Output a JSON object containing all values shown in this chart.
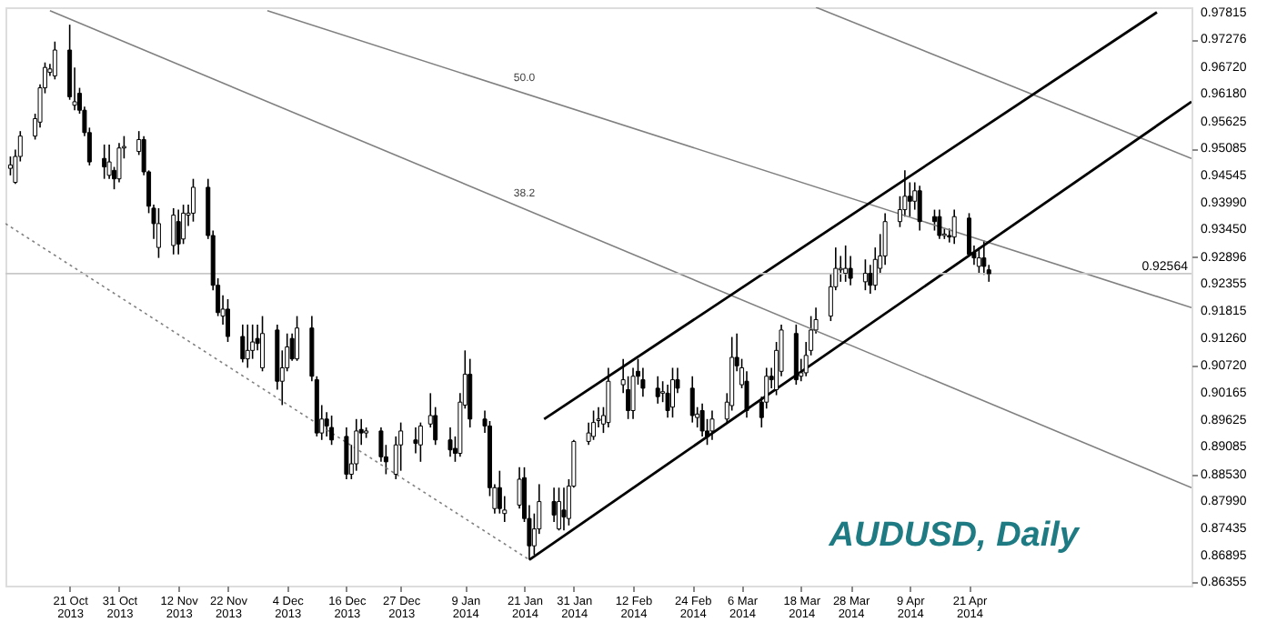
{
  "chart_data": {
    "type": "candlestick",
    "title": "AUDUSD, Daily",
    "x": [
      "2013-10-09",
      "2013-10-10",
      "2013-10-11",
      "2013-10-14",
      "2013-10-15",
      "2013-10-16",
      "2013-10-17",
      "2013-10-18",
      "2013-10-21",
      "2013-10-22",
      "2013-10-23",
      "2013-10-24",
      "2013-10-25",
      "2013-10-28",
      "2013-10-29",
      "2013-10-30",
      "2013-10-31",
      "2013-11-01",
      "2013-11-04",
      "2013-11-05",
      "2013-11-06",
      "2013-11-07",
      "2013-11-08",
      "2013-11-11",
      "2013-11-12",
      "2013-11-13",
      "2013-11-14",
      "2013-11-15",
      "2013-11-18",
      "2013-11-19",
      "2013-11-20",
      "2013-11-21",
      "2013-11-22",
      "2013-11-25",
      "2013-11-26",
      "2013-11-27",
      "2013-11-28",
      "2013-11-29",
      "2013-12-02",
      "2013-12-03",
      "2013-12-04",
      "2013-12-05",
      "2013-12-06",
      "2013-12-09",
      "2013-12-10",
      "2013-12-11",
      "2013-12-12",
      "2013-12-13",
      "2013-12-16",
      "2013-12-17",
      "2013-12-18",
      "2013-12-19",
      "2013-12-20",
      "2013-12-23",
      "2013-12-24",
      "2013-12-26",
      "2013-12-27",
      "2013-12-30",
      "2013-12-31",
      "2014-01-02",
      "2014-01-03",
      "2014-01-06",
      "2014-01-07",
      "2014-01-08",
      "2014-01-09",
      "2014-01-10",
      "2014-01-13",
      "2014-01-14",
      "2014-01-15",
      "2014-01-16",
      "2014-01-17",
      "2014-01-20",
      "2014-01-21",
      "2014-01-22",
      "2014-01-23",
      "2014-01-24",
      "2014-01-27",
      "2014-01-28",
      "2014-01-29",
      "2014-01-30",
      "2014-01-31",
      "2014-02-03",
      "2014-02-04",
      "2014-02-05",
      "2014-02-06",
      "2014-02-07",
      "2014-02-10",
      "2014-02-11",
      "2014-02-12",
      "2014-02-13",
      "2014-02-14",
      "2014-02-17",
      "2014-02-18",
      "2014-02-19",
      "2014-02-20",
      "2014-02-21",
      "2014-02-24",
      "2014-02-25",
      "2014-02-26",
      "2014-02-27",
      "2014-02-28",
      "2014-03-03",
      "2014-03-04",
      "2014-03-05",
      "2014-03-06",
      "2014-03-07",
      "2014-03-10",
      "2014-03-11",
      "2014-03-12",
      "2014-03-13",
      "2014-03-14",
      "2014-03-17",
      "2014-03-18",
      "2014-03-19",
      "2014-03-20",
      "2014-03-21",
      "2014-03-24",
      "2014-03-25",
      "2014-03-26",
      "2014-03-27",
      "2014-03-28",
      "2014-03-31",
      "2014-04-01",
      "2014-04-02",
      "2014-04-03",
      "2014-04-04",
      "2014-04-07",
      "2014-04-08",
      "2014-04-09",
      "2014-04-10",
      "2014-04-11",
      "2014-04-14",
      "2014-04-15",
      "2014-04-16",
      "2014-04-17",
      "2014-04-18",
      "2014-04-21",
      "2014-04-22",
      "2014-04-23",
      "2014-04-24",
      "2014-04-25"
    ],
    "ohlc": [
      [
        0.9468,
        0.9492,
        0.9454,
        0.9475
      ],
      [
        0.944,
        0.9506,
        0.9437,
        0.9492
      ],
      [
        0.9492,
        0.9543,
        0.9482,
        0.9533
      ],
      [
        0.9533,
        0.9578,
        0.9526,
        0.9568
      ],
      [
        0.9561,
        0.9637,
        0.955,
        0.963
      ],
      [
        0.963,
        0.9681,
        0.9619,
        0.9671
      ],
      [
        0.9661,
        0.9678,
        0.9654,
        0.9668
      ],
      [
        0.9654,
        0.9723,
        0.9647,
        0.9706
      ],
      [
        0.9706,
        0.9757,
        0.9606,
        0.9612
      ],
      [
        0.9595,
        0.9671,
        0.9585,
        0.9602
      ],
      [
        0.9619,
        0.963,
        0.9578,
        0.9585
      ],
      [
        0.9585,
        0.9592,
        0.9533,
        0.954
      ],
      [
        0.954,
        0.955,
        0.9474,
        0.9481
      ],
      [
        0.9488,
        0.9516,
        0.9447,
        0.9471
      ],
      [
        0.9454,
        0.9516,
        0.9447,
        0.9481
      ],
      [
        0.9464,
        0.9471,
        0.9426,
        0.9447
      ],
      [
        0.9447,
        0.9519,
        0.944,
        0.9509
      ],
      [
        0.9509,
        0.9533,
        0.9488,
        0.9512
      ],
      [
        0.9502,
        0.9543,
        0.9495,
        0.9526
      ],
      [
        0.9526,
        0.9533,
        0.9454,
        0.9461
      ],
      [
        0.9461,
        0.9464,
        0.9378,
        0.9392
      ],
      [
        0.9388,
        0.9395,
        0.9326,
        0.9357
      ],
      [
        0.9309,
        0.9388,
        0.9288,
        0.9357
      ],
      [
        0.9313,
        0.9388,
        0.9295,
        0.9374
      ],
      [
        0.9361,
        0.9385,
        0.9295,
        0.9316
      ],
      [
        0.9326,
        0.9395,
        0.9316,
        0.9378
      ],
      [
        0.9374,
        0.9395,
        0.9352,
        0.9378
      ],
      [
        0.9378,
        0.9447,
        0.9361,
        0.943
      ],
      [
        0.943,
        0.9447,
        0.9326,
        0.9333
      ],
      [
        0.9333,
        0.9343,
        0.9223,
        0.9233
      ],
      [
        0.9233,
        0.9247,
        0.9171,
        0.9178
      ],
      [
        0.9171,
        0.9213,
        0.9154,
        0.9185
      ],
      [
        0.9185,
        0.9205,
        0.9119,
        0.913
      ],
      [
        0.913,
        0.9154,
        0.9078,
        0.9085
      ],
      [
        0.9085,
        0.9154,
        0.9067,
        0.9102
      ],
      [
        0.9102,
        0.9154,
        0.9085,
        0.9119
      ],
      [
        0.9126,
        0.9154,
        0.9102,
        0.9116
      ],
      [
        0.9067,
        0.9171,
        0.906,
        0.9136
      ],
      [
        0.9143,
        0.9154,
        0.9023,
        0.904
      ],
      [
        0.904,
        0.9102,
        0.8992,
        0.9067
      ],
      [
        0.9067,
        0.9136,
        0.906,
        0.9109
      ],
      [
        0.9126,
        0.9136,
        0.9081,
        0.9085
      ],
      [
        0.9085,
        0.9171,
        0.9081,
        0.9147
      ],
      [
        0.9147,
        0.9171,
        0.904,
        0.905
      ],
      [
        0.9043,
        0.905,
        0.8929,
        0.8936
      ],
      [
        0.8936,
        0.8992,
        0.8922,
        0.8964
      ],
      [
        0.8964,
        0.8978,
        0.8929,
        0.895
      ],
      [
        0.8947,
        0.8971,
        0.8912,
        0.8922
      ],
      [
        0.8929,
        0.8947,
        0.8843,
        0.8853
      ],
      [
        0.8853,
        0.8912,
        0.8843,
        0.8874
      ],
      [
        0.8874,
        0.8964,
        0.886,
        0.894
      ],
      [
        0.8943,
        0.8964,
        0.8912,
        0.8936
      ],
      [
        0.8936,
        0.8947,
        0.8926,
        0.894
      ],
      [
        0.894,
        0.8947,
        0.8878,
        0.8888
      ],
      [
        0.8888,
        0.8912,
        0.8853,
        0.8878
      ],
      [
        0.8853,
        0.8929,
        0.8843,
        0.8912
      ],
      [
        0.8912,
        0.8957,
        0.886,
        0.894
      ],
      [
        0.8922,
        0.8947,
        0.8895,
        0.8915
      ],
      [
        0.8912,
        0.8957,
        0.8878,
        0.895
      ],
      [
        0.8954,
        0.9016,
        0.8947,
        0.8971
      ],
      [
        0.8971,
        0.8988,
        0.8912,
        0.8922
      ],
      [
        0.8922,
        0.8947,
        0.8888,
        0.8902
      ],
      [
        0.8905,
        0.8929,
        0.8878,
        0.8895
      ],
      [
        0.8895,
        0.9016,
        0.8888,
        0.8998
      ],
      [
        0.8992,
        0.9102,
        0.8985,
        0.9054
      ],
      [
        0.9054,
        0.9085,
        0.8947,
        0.8964
      ],
      [
        0.8964,
        0.8981,
        0.8936,
        0.895
      ],
      [
        0.895,
        0.896,
        0.8809,
        0.8826
      ],
      [
        0.8784,
        0.8833,
        0.8774,
        0.8826
      ],
      [
        0.8826,
        0.886,
        0.8774,
        0.8784
      ],
      [
        0.8774,
        0.8809,
        0.8757,
        0.8781
      ],
      [
        0.8791,
        0.8867,
        0.8784,
        0.8843
      ],
      [
        0.8846,
        0.8867,
        0.8757,
        0.8764
      ],
      [
        0.8764,
        0.8791,
        0.8681,
        0.8709
      ],
      [
        0.8709,
        0.8774,
        0.8691,
        0.8743
      ],
      [
        0.8743,
        0.8833,
        0.8733,
        0.8798
      ],
      [
        0.8798,
        0.8826,
        0.8757,
        0.8771
      ],
      [
        0.8743,
        0.8826,
        0.874,
        0.8798
      ],
      [
        0.8781,
        0.8826,
        0.874,
        0.8767
      ],
      [
        0.8764,
        0.8843,
        0.875,
        0.8829
      ],
      [
        0.8829,
        0.8922,
        0.8826,
        0.8919
      ],
      [
        0.8919,
        0.8957,
        0.8912,
        0.8936
      ],
      [
        0.8929,
        0.8981,
        0.8922,
        0.8957
      ],
      [
        0.8961,
        0.8988,
        0.8947,
        0.8964
      ],
      [
        0.8954,
        0.8988,
        0.8936,
        0.8971
      ],
      [
        0.8957,
        0.9067,
        0.8947,
        0.904
      ],
      [
        0.9033,
        0.9085,
        0.9016,
        0.9043
      ],
      [
        0.9023,
        0.905,
        0.8964,
        0.8981
      ],
      [
        0.8981,
        0.9067,
        0.8964,
        0.905
      ],
      [
        0.906,
        0.9085,
        0.9033,
        0.905
      ],
      [
        0.9043,
        0.9067,
        0.9009,
        0.9026
      ],
      [
        0.9026,
        0.905,
        0.8995,
        0.9009
      ],
      [
        0.9016,
        0.904,
        0.8998,
        0.9019
      ],
      [
        0.9016,
        0.9033,
        0.8967,
        0.8981
      ],
      [
        0.8988,
        0.9067,
        0.8967,
        0.9043
      ],
      [
        0.9043,
        0.9067,
        0.9016,
        0.9026
      ],
      [
        0.9026,
        0.905,
        0.8957,
        0.8971
      ],
      [
        0.8967,
        0.8988,
        0.8947,
        0.8974
      ],
      [
        0.8981,
        0.8995,
        0.8929,
        0.894
      ],
      [
        0.894,
        0.8964,
        0.8912,
        0.8929
      ],
      [
        0.894,
        0.8981,
        0.8922,
        0.8964
      ],
      [
        0.8964,
        0.9016,
        0.8957,
        0.8998
      ],
      [
        0.8991,
        0.9129,
        0.8981,
        0.9088
      ],
      [
        0.9088,
        0.9136,
        0.906,
        0.9071
      ],
      [
        0.9033,
        0.9085,
        0.9026,
        0.9067
      ],
      [
        0.904,
        0.906,
        0.8967,
        0.8981
      ],
      [
        0.8998,
        0.9009,
        0.8947,
        0.8967
      ],
      [
        0.8998,
        0.9067,
        0.8985,
        0.905
      ],
      [
        0.905,
        0.9067,
        0.9026,
        0.9043
      ],
      [
        0.9023,
        0.9119,
        0.9012,
        0.9102
      ],
      [
        0.906,
        0.9154,
        0.905,
        0.9143
      ],
      [
        0.9136,
        0.9154,
        0.9033,
        0.9043
      ],
      [
        0.905,
        0.9085,
        0.904,
        0.9057
      ],
      [
        0.9057,
        0.9119,
        0.905,
        0.9092
      ],
      [
        0.9102,
        0.9171,
        0.9092,
        0.9143
      ],
      [
        0.9143,
        0.9188,
        0.9136,
        0.9164
      ],
      [
        0.9171,
        0.9257,
        0.9161,
        0.923
      ],
      [
        0.923,
        0.9309,
        0.9223,
        0.9267
      ],
      [
        0.9264,
        0.9292,
        0.924,
        0.9267
      ],
      [
        0.9257,
        0.9313,
        0.924,
        0.9267
      ],
      [
        0.9267,
        0.9292,
        0.9233,
        0.9247
      ],
      [
        0.924,
        0.9285,
        0.9223,
        0.9257
      ],
      [
        0.9257,
        0.9274,
        0.9216,
        0.9233
      ],
      [
        0.9233,
        0.9309,
        0.9223,
        0.9285
      ],
      [
        0.9267,
        0.9336,
        0.9257,
        0.9292
      ],
      [
        0.9292,
        0.9378,
        0.9274,
        0.9361
      ],
      [
        0.9361,
        0.9412,
        0.935,
        0.9385
      ],
      [
        0.9385,
        0.9464,
        0.9371,
        0.9412
      ],
      [
        0.9412,
        0.944,
        0.9371,
        0.9402
      ],
      [
        0.9402,
        0.944,
        0.9385,
        0.9423
      ],
      [
        0.9423,
        0.9433,
        0.9343,
        0.9361
      ],
      [
        0.9371,
        0.9385,
        0.9343,
        0.9361
      ],
      [
        0.9371,
        0.9385,
        0.9326,
        0.9333
      ],
      [
        0.9333,
        0.9347,
        0.9326,
        0.9336
      ],
      [
        0.9333,
        0.9347,
        0.9319,
        0.933
      ],
      [
        0.933,
        0.9385,
        0.9316,
        0.9371
      ],
      [
        0.9368,
        0.9378,
        0.9292,
        0.9295
      ],
      [
        0.9299,
        0.9313,
        0.9274,
        0.9288
      ],
      [
        0.9271,
        0.9309,
        0.9257,
        0.9288
      ],
      [
        0.9288,
        0.9323,
        0.9254,
        0.9271
      ],
      [
        0.9264,
        0.9274,
        0.924,
        0.9256
      ]
    ],
    "series": [
      {
        "type": "line",
        "color": "#808080",
        "line_style": "solid",
        "x": [
          "2013-10-17",
          "2014-06-05"
        ],
        "values": [
          0.9785,
          0.8826
        ]
      },
      {
        "type": "line",
        "color": "#808080",
        "line_style": "solid",
        "x": [
          "2013-11-30",
          "2014-06-05"
        ],
        "values": [
          0.9785,
          0.9188
        ]
      },
      {
        "type": "line",
        "color": "#808080",
        "line_style": "solid",
        "x": [
          "2014-03-21",
          "2014-06-05"
        ],
        "values": [
          0.9792,
          0.9488
        ]
      },
      {
        "type": "line",
        "color": "#808080",
        "line_style": "dotted",
        "x": [
          "2013-10-08",
          "2014-01-22"
        ],
        "values": [
          0.9357,
          0.8681
        ]
      },
      {
        "type": "line",
        "color": "#000000",
        "line_style": "solid",
        "x": [
          "2014-01-25",
          "2014-05-29"
        ],
        "values": [
          0.8964,
          0.9782
        ]
      },
      {
        "type": "line",
        "color": "#000000",
        "line_style": "solid",
        "x": [
          "2014-01-22",
          "2014-06-05"
        ],
        "values": [
          0.8681,
          0.9602
        ]
      }
    ],
    "xlim": [
      "2013-10-08",
      "2014-06-05"
    ],
    "xticks": [
      {
        "value": "2013-10-21",
        "label": "21 Oct 2013"
      },
      {
        "value": "2013-10-31",
        "label": "31 Oct 2013"
      },
      {
        "value": "2013-11-12",
        "label": "12 Nov 2013"
      },
      {
        "value": "2013-11-22",
        "label": "22 Nov 2013"
      },
      {
        "value": "2013-12-04",
        "label": "4 Dec 2013"
      },
      {
        "value": "2013-12-16",
        "label": "16 Dec 2013"
      },
      {
        "value": "2013-12-27",
        "label": "27 Dec 2013"
      },
      {
        "value": "2014-01-09",
        "label": "9 Jan 2014"
      },
      {
        "value": "2014-01-21",
        "label": "21 Jan 2014"
      },
      {
        "value": "2014-01-31",
        "label": "31 Jan 2014"
      },
      {
        "value": "2014-02-12",
        "label": "12 Feb 2014"
      },
      {
        "value": "2014-02-24",
        "label": "24 Feb 2014"
      },
      {
        "value": "2014-03-06",
        "label": "6 Mar 2014"
      },
      {
        "value": "2014-03-18",
        "label": "18 Mar 2014"
      },
      {
        "value": "2014-03-28",
        "label": "28 Mar 2014"
      },
      {
        "value": "2014-04-09",
        "label": "9 Apr 2014"
      },
      {
        "value": "2014-04-21",
        "label": "21 Apr 2014"
      }
    ],
    "ylim": [
      0.8629,
      0.9792
    ],
    "yticks": [
      0.97815,
      0.97276,
      {
        "value": 0.9672,
        "label": "0.96720"
      },
      {
        "value": 0.9618,
        "label": "0.96180"
      },
      0.95625,
      0.95085,
      0.94545,
      {
        "value": 0.9399,
        "label": "0.93990"
      },
      {
        "value": 0.9345,
        "label": "0.93450"
      },
      0.92896,
      0.92355,
      0.91815,
      {
        "value": 0.9126,
        "label": "0.91260"
      },
      {
        "value": 0.9072,
        "label": "0.90720"
      },
      0.90165,
      0.89625,
      0.89085,
      {
        "value": 0.8853,
        "label": "0.88530"
      },
      {
        "value": 0.8799,
        "label": "0.87990"
      },
      0.87435,
      0.86895,
      0.86355
    ],
    "ref_lines": [
      {
        "axis": "y",
        "value": 0.92564,
        "label": "0.92564",
        "color": "#c8c8c8"
      }
    ],
    "annotations": [
      {
        "text": "50.0",
        "x": "2014-01-21",
        "y": 0.9629
      },
      {
        "text": "38.2",
        "x": "2014-01-21",
        "y": 0.9397
      }
    ]
  }
}
